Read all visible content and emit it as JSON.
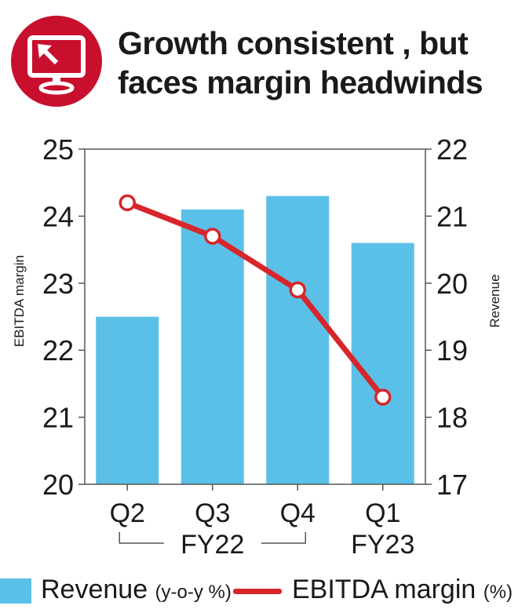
{
  "header": {
    "title_line1": "Growth consistent , but",
    "title_line2": "faces margin headwinds",
    "icon": "monitor-cursor-icon"
  },
  "colors": {
    "revenue_bar": "#5bc0e8",
    "ebitda_line": "#d7262b",
    "icon_badge": "#c8102e",
    "axis": "#555555"
  },
  "chart_data": {
    "type": "bar",
    "categories": [
      "Q2",
      "Q3",
      "Q4",
      "Q1"
    ],
    "category_groups": [
      {
        "label": "FY22",
        "spans": [
          "Q2",
          "Q3",
          "Q4"
        ]
      },
      {
        "label": "FY23",
        "spans": [
          "Q1"
        ]
      }
    ],
    "series": [
      {
        "name": "Revenue",
        "unit": "(y-o-y %)",
        "type": "bar",
        "axis": "right",
        "values": [
          19.5,
          21.1,
          21.3,
          20.6
        ]
      },
      {
        "name": "EBITDA margin",
        "unit": "(%)",
        "type": "line",
        "axis": "left",
        "values": [
          24.2,
          23.7,
          22.9,
          21.3
        ]
      }
    ],
    "ylabel_left": "EBITDA margin",
    "ylabel_right": "Revenue",
    "ylim_left": [
      20,
      25
    ],
    "ylim_right": [
      17,
      22
    ],
    "yticks_left": [
      "20",
      "21",
      "22",
      "23",
      "24",
      "25"
    ],
    "yticks_right": [
      "17",
      "18",
      "19",
      "20",
      "21",
      "22"
    ],
    "grid": false,
    "legend_position": "bottom"
  }
}
